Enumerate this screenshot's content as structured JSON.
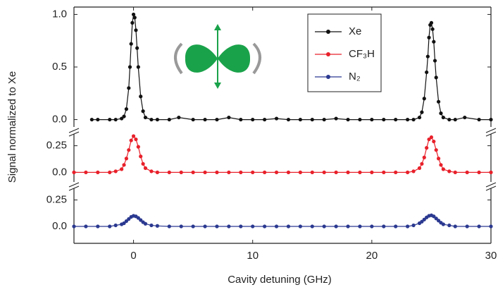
{
  "chart_data": [
    {
      "type": "line",
      "y_label": "Signal normalized to Xe",
      "xlim": [
        -5,
        30
      ],
      "ylim": [
        -0.07,
        1.07
      ],
      "yticks": [
        {
          "value": 0,
          "label": "0.0"
        },
        {
          "value": 0.5,
          "label": "0.5"
        },
        {
          "value": 1,
          "label": "1.0"
        }
      ],
      "series": [
        {
          "name": "Xe",
          "color": "#111111",
          "x": [
            -3.5,
            -3,
            -2,
            -1.5,
            -1,
            -0.8,
            -0.6,
            -0.4,
            -0.3,
            -0.2,
            -0.1,
            0,
            0.1,
            0.2,
            0.3,
            0.4,
            0.6,
            0.8,
            1,
            1.5,
            2,
            3,
            3.8,
            5,
            6,
            7,
            8,
            9,
            10,
            11,
            12,
            13,
            14,
            15,
            16,
            17,
            18,
            19,
            20,
            21,
            22,
            23,
            23.5,
            24,
            24.2,
            24.4,
            24.6,
            24.7,
            24.8,
            24.9,
            25,
            25.1,
            25.2,
            25.3,
            25.4,
            25.6,
            25.8,
            26,
            26.5,
            27,
            27.8,
            29,
            30
          ],
          "values": [
            0,
            0,
            0,
            0,
            0.01,
            0.03,
            0.1,
            0.3,
            0.5,
            0.72,
            0.92,
            1,
            0.97,
            0.85,
            0.68,
            0.5,
            0.22,
            0.08,
            0.02,
            0,
            0,
            0,
            0.02,
            0,
            0,
            0,
            0.02,
            0,
            0,
            0,
            0.01,
            0,
            0,
            0,
            0,
            0.01,
            0,
            0,
            0,
            0,
            0,
            0,
            0,
            0.02,
            0.07,
            0.2,
            0.45,
            0.6,
            0.78,
            0.9,
            0.92,
            0.86,
            0.74,
            0.56,
            0.4,
            0.17,
            0.06,
            0.02,
            0,
            0,
            0.02,
            0,
            0
          ]
        }
      ]
    },
    {
      "type": "line",
      "xlim": [
        -5,
        30
      ],
      "ylim": [
        -0.09,
        0.36
      ],
      "yticks": [
        {
          "value": 0,
          "label": "0.0"
        },
        0.25
      ],
      "series": [
        {
          "name": "CF₃H",
          "color": "#e8202a",
          "x": [
            -5,
            -4,
            -3,
            -2,
            -1.5,
            -1,
            -0.8,
            -0.6,
            -0.4,
            -0.2,
            0,
            0.2,
            0.4,
            0.6,
            0.8,
            1,
            1.5,
            2,
            3,
            4,
            5,
            6,
            7,
            8,
            9,
            10,
            11,
            12,
            13,
            14,
            15,
            16,
            17,
            18,
            19,
            20,
            21,
            22,
            23,
            23.5,
            24,
            24.2,
            24.4,
            24.6,
            24.8,
            25,
            25.2,
            25.4,
            25.6,
            25.8,
            26,
            26.5,
            27,
            28,
            29,
            30
          ],
          "values": [
            0,
            0,
            0,
            0,
            0.01,
            0.03,
            0.07,
            0.13,
            0.21,
            0.3,
            0.34,
            0.31,
            0.24,
            0.15,
            0.08,
            0.04,
            0.01,
            0,
            0,
            0,
            0,
            0,
            0,
            0,
            0,
            0,
            0,
            0,
            0,
            0,
            0,
            0,
            0,
            0,
            0,
            0,
            0,
            0,
            0,
            0.01,
            0.04,
            0.08,
            0.14,
            0.23,
            0.31,
            0.33,
            0.29,
            0.21,
            0.13,
            0.07,
            0.03,
            0.01,
            0,
            0,
            0,
            0
          ]
        }
      ]
    },
    {
      "type": "line",
      "x_label": "Cavity detuning (GHz)",
      "xlim": [
        -5,
        30
      ],
      "ylim": [
        -0.16,
        0.36
      ],
      "xticks": [
        0,
        10,
        20,
        30
      ],
      "yticks": [
        {
          "value": 0,
          "label": "0.0"
        },
        0.25
      ],
      "series": [
        {
          "name": "N₂",
          "color": "#2b3990",
          "x": [
            -5,
            -4,
            -3,
            -2,
            -1.5,
            -1,
            -0.8,
            -0.6,
            -0.4,
            -0.2,
            0,
            0.2,
            0.4,
            0.6,
            0.8,
            1,
            1.5,
            2,
            3,
            4,
            5,
            6,
            7,
            8,
            9,
            10,
            11,
            12,
            13,
            14,
            15,
            16,
            17,
            18,
            19,
            20,
            21,
            22,
            23,
            23.5,
            24,
            24.2,
            24.4,
            24.6,
            24.8,
            25,
            25.2,
            25.4,
            25.6,
            25.8,
            26,
            26.5,
            27,
            28,
            29,
            30
          ],
          "values": [
            0,
            0,
            0,
            0,
            0.01,
            0.02,
            0.03,
            0.05,
            0.07,
            0.09,
            0.1,
            0.095,
            0.08,
            0.06,
            0.04,
            0.025,
            0.01,
            0.005,
            0,
            0,
            0,
            0,
            0,
            0,
            0,
            0,
            0,
            0,
            0,
            0,
            0,
            0,
            0,
            0,
            0,
            0,
            0,
            0,
            0,
            0.01,
            0.03,
            0.045,
            0.065,
            0.085,
            0.1,
            0.105,
            0.095,
            0.075,
            0.055,
            0.035,
            0.02,
            0.01,
            0,
            0,
            0,
            0
          ]
        }
      ]
    }
  ]
}
